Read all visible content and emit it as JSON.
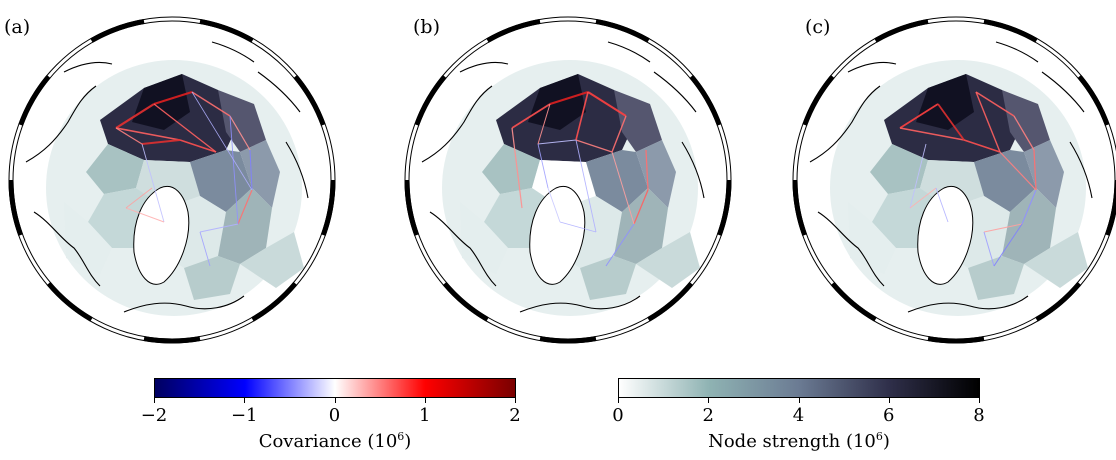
{
  "panels": [
    {
      "label": "(a)"
    },
    {
      "label": "(b)"
    },
    {
      "label": "(c)"
    }
  ],
  "colorbars": {
    "covariance": {
      "title": "Covariance (10",
      "exponent": "6",
      "title_suffix": ")",
      "ticks": [
        "−2",
        "−1",
        "0",
        "1",
        "2"
      ],
      "range": [
        -2,
        2
      ],
      "colors": [
        "#000060",
        "#0000ff",
        "#ffffff",
        "#ff0000",
        "#7a0000"
      ]
    },
    "node_strength": {
      "title": "Node strength (10",
      "exponent": "6",
      "title_suffix": ")",
      "ticks": [
        "0",
        "2",
        "4",
        "6",
        "8"
      ],
      "range": [
        0,
        8
      ],
      "colors": [
        "#ffffff",
        "#8fb3b3",
        "#6b7b93",
        "#2f2f4a",
        "#000000"
      ]
    }
  }
}
